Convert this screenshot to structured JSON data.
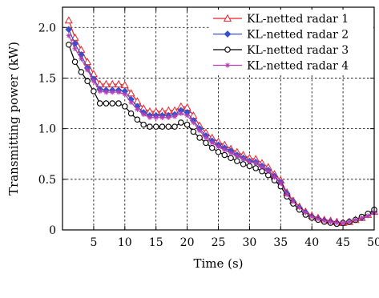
{
  "chart_data": {
    "type": "line",
    "title": "",
    "xlabel": "Time (s)",
    "ylabel": "Transmitting power (kW)",
    "xlim": [
      0,
      50
    ],
    "ylim": [
      0,
      2.2
    ],
    "xticks": [
      5,
      10,
      15,
      20,
      25,
      30,
      35,
      40,
      45,
      50
    ],
    "xtick_labels": [
      "5",
      "10",
      "15",
      "20",
      "25",
      "30",
      "35",
      "40",
      "45",
      "50"
    ],
    "yticks": [
      0,
      0.5,
      1.0,
      1.5,
      2.0
    ],
    "ytick_labels": [
      "0",
      "0.5",
      "1.0",
      "1.5",
      "2.0"
    ],
    "grid": true,
    "legend_position": "top-right",
    "x": [
      1,
      2,
      3,
      4,
      5,
      6,
      7,
      8,
      9,
      10,
      11,
      12,
      13,
      14,
      15,
      16,
      17,
      18,
      19,
      20,
      21,
      22,
      23,
      24,
      25,
      26,
      27,
      28,
      29,
      30,
      31,
      32,
      33,
      34,
      35,
      36,
      37,
      38,
      39,
      40,
      41,
      42,
      43,
      44,
      45,
      46,
      47,
      48,
      49,
      50
    ],
    "series": [
      {
        "name": "KL-netted radar 1",
        "color": "#e8202a",
        "marker": "triangle-open",
        "values": [
          2.07,
          1.9,
          1.78,
          1.66,
          1.54,
          1.44,
          1.44,
          1.44,
          1.44,
          1.43,
          1.35,
          1.27,
          1.2,
          1.17,
          1.17,
          1.17,
          1.18,
          1.18,
          1.22,
          1.21,
          1.13,
          1.03,
          0.96,
          0.91,
          0.87,
          0.84,
          0.8,
          0.77,
          0.74,
          0.71,
          0.7,
          0.66,
          0.62,
          0.55,
          0.49,
          0.37,
          0.29,
          0.23,
          0.18,
          0.14,
          0.12,
          0.1,
          0.09,
          0.08,
          0.07,
          0.08,
          0.1,
          0.12,
          0.15,
          0.18
        ]
      },
      {
        "name": "KL-netted radar 2",
        "color": "#3b4fc8",
        "marker": "diamond-filled",
        "values": [
          1.98,
          1.84,
          1.73,
          1.6,
          1.49,
          1.39,
          1.38,
          1.38,
          1.38,
          1.37,
          1.29,
          1.22,
          1.16,
          1.13,
          1.13,
          1.13,
          1.13,
          1.14,
          1.18,
          1.16,
          1.08,
          1.0,
          0.93,
          0.88,
          0.84,
          0.81,
          0.78,
          0.74,
          0.71,
          0.68,
          0.67,
          0.63,
          0.59,
          0.53,
          0.47,
          0.36,
          0.28,
          0.22,
          0.17,
          0.13,
          0.11,
          0.09,
          0.08,
          0.07,
          0.07,
          0.08,
          0.1,
          0.12,
          0.15,
          0.18
        ]
      },
      {
        "name": "KL-netted radar 3",
        "color": "#000000",
        "marker": "circle-open",
        "values": [
          1.83,
          1.66,
          1.56,
          1.47,
          1.37,
          1.25,
          1.25,
          1.25,
          1.25,
          1.22,
          1.15,
          1.09,
          1.04,
          1.02,
          1.02,
          1.02,
          1.02,
          1.02,
          1.06,
          1.04,
          0.97,
          0.91,
          0.86,
          0.81,
          0.77,
          0.74,
          0.71,
          0.68,
          0.65,
          0.63,
          0.61,
          0.58,
          0.54,
          0.49,
          0.43,
          0.33,
          0.26,
          0.2,
          0.15,
          0.12,
          0.1,
          0.08,
          0.07,
          0.06,
          0.07,
          0.08,
          0.1,
          0.13,
          0.16,
          0.2
        ]
      },
      {
        "name": "KL-netted radar 4",
        "color": "#b53fb5",
        "marker": "star",
        "values": [
          1.92,
          1.79,
          1.69,
          1.58,
          1.47,
          1.37,
          1.36,
          1.36,
          1.36,
          1.34,
          1.26,
          1.19,
          1.14,
          1.11,
          1.11,
          1.11,
          1.11,
          1.12,
          1.15,
          1.13,
          1.06,
          0.98,
          0.91,
          0.86,
          0.82,
          0.79,
          0.76,
          0.73,
          0.7,
          0.67,
          0.66,
          0.62,
          0.58,
          0.52,
          0.46,
          0.35,
          0.28,
          0.22,
          0.17,
          0.13,
          0.11,
          0.09,
          0.08,
          0.07,
          0.07,
          0.08,
          0.1,
          0.12,
          0.14,
          0.17
        ]
      }
    ]
  }
}
